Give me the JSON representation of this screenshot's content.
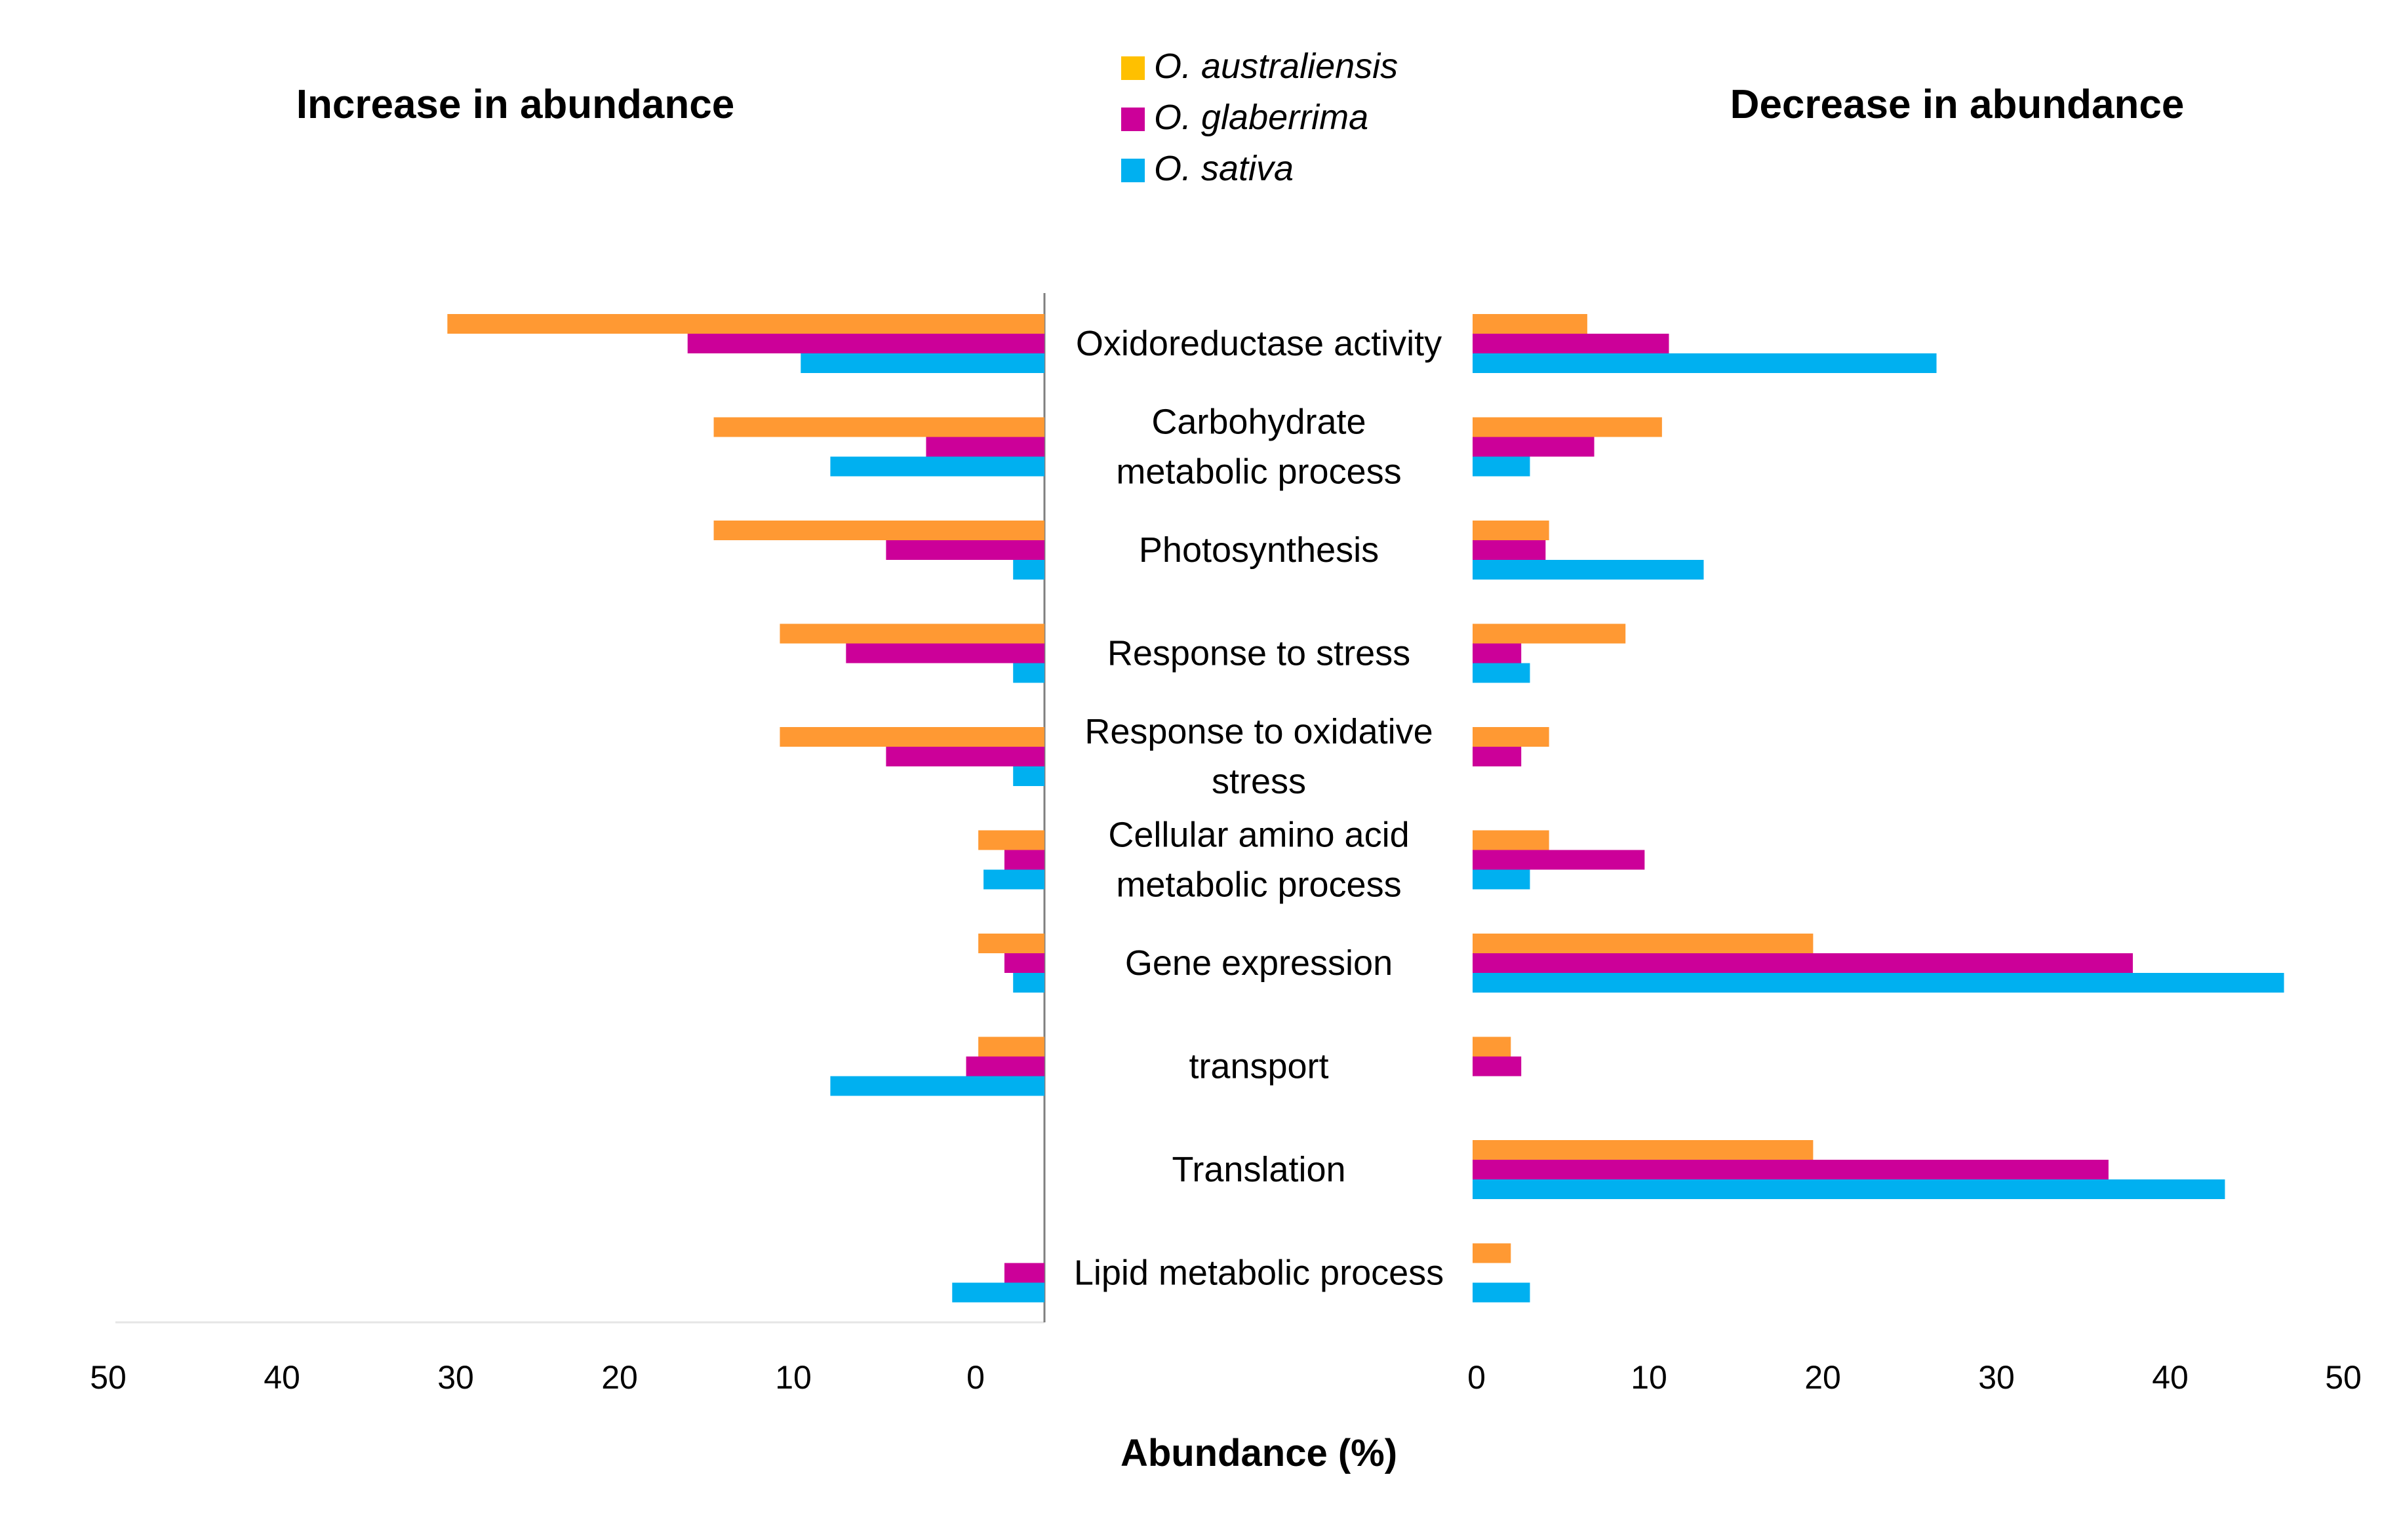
{
  "chart_data": {
    "type": "bar",
    "orientation": "horizontal-diverging",
    "left_panel_title": "Increase in abundance",
    "right_panel_title": "Decrease in abundance",
    "xlabel": "Abundance (%)",
    "categories": [
      [
        "Oxidoreductase activity"
      ],
      [
        "Carbohydrate",
        "metabolic process"
      ],
      [
        "Photosynthesis"
      ],
      [
        "Response to stress"
      ],
      [
        "Response to oxidative",
        "stress"
      ],
      [
        "Cellular amino acid",
        "metabolic process"
      ],
      [
        "Gene expression"
      ],
      [
        "transport"
      ],
      [
        "Translation"
      ],
      [
        "Lipid metabolic process"
      ]
    ],
    "left_ticks": [
      "50",
      "40",
      "30",
      "20",
      "10",
      "0"
    ],
    "right_ticks": [
      "0",
      "10",
      "20",
      "30",
      "40",
      "50"
    ],
    "xlim": [
      0,
      50
    ],
    "legend_position": "top-center",
    "series": [
      {
        "name": "O. australiensis",
        "legend_color": "#FFC000",
        "bar_color": "#FF9933",
        "increase": [
          34.3,
          19,
          19,
          15.2,
          15.2,
          3.8,
          3.8,
          3.8,
          0,
          0
        ],
        "decrease": [
          6.6,
          10.9,
          4.4,
          8.8,
          4.4,
          4.4,
          19.6,
          2.2,
          19.6,
          2.2
        ]
      },
      {
        "name": "O. glaberrima",
        "legend_color": "#CC0099",
        "bar_color": "#CC0099",
        "increase": [
          20.5,
          6.8,
          9.1,
          11.4,
          9.1,
          2.3,
          2.3,
          4.5,
          0,
          2.3
        ],
        "decrease": [
          11.3,
          7,
          4.2,
          2.8,
          2.8,
          9.9,
          38,
          2.8,
          36.6,
          0
        ]
      },
      {
        "name": "O. sativa",
        "legend_color": "#00B0F0",
        "bar_color": "#00B0F0",
        "increase": [
          14,
          12.3,
          1.8,
          1.8,
          1.8,
          3.5,
          1.8,
          12.3,
          0,
          5.3
        ],
        "decrease": [
          26.7,
          3.3,
          13.3,
          3.3,
          0,
          3.3,
          46.7,
          0,
          43.3,
          3.3
        ]
      }
    ]
  }
}
